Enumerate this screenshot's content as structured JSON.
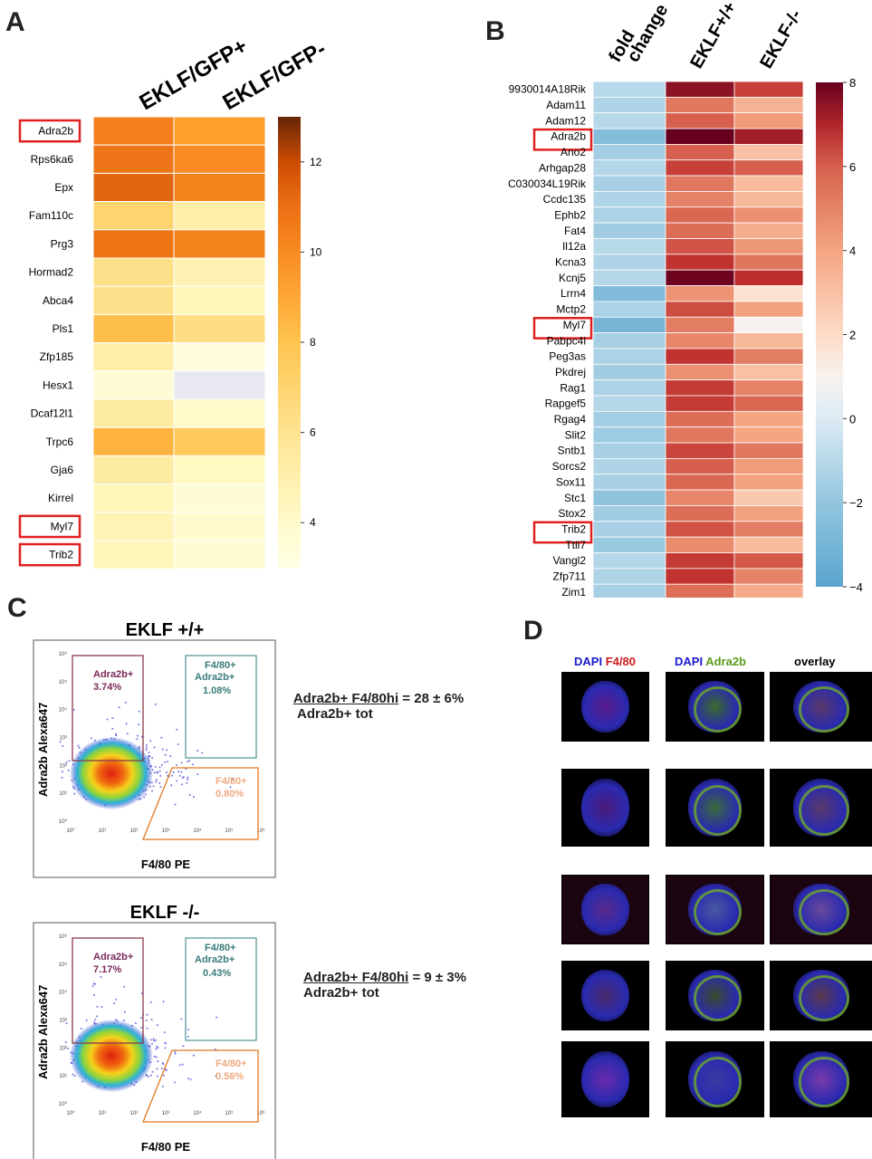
{
  "panels": {
    "a": "A",
    "b": "B",
    "c": "C",
    "d": "D"
  },
  "chart_data": [
    {
      "id": "A",
      "type": "heatmap",
      "columns": [
        "EKLF/GFP+",
        "EKLF/GFP-"
      ],
      "rows": [
        "Adra2b",
        "Rps6ka6",
        "Epx",
        "Fam110c",
        "Prg3",
        "Hormad2",
        "Abca4",
        "Pls1",
        "Zfp185",
        "Hesx1",
        "Dcaf12l1",
        "Trpc6",
        "Gja6",
        "Kirrel",
        "Myl7",
        "Trib2"
      ],
      "values": [
        [
          10.4,
          9.3
        ],
        [
          10.8,
          10.0
        ],
        [
          11.3,
          10.3
        ],
        [
          7.0,
          5.2
        ],
        [
          10.9,
          10.3
        ],
        [
          6.2,
          4.8
        ],
        [
          6.2,
          4.6
        ],
        [
          8.2,
          6.4
        ],
        [
          5.2,
          3.3
        ],
        [
          3.6,
          null
        ],
        [
          5.4,
          4.0
        ],
        [
          8.6,
          7.6
        ],
        [
          5.4,
          4.3
        ],
        [
          4.6,
          3.6
        ],
        [
          4.7,
          3.8
        ],
        [
          4.6,
          3.7
        ]
      ],
      "highlighted": [
        "Adra2b",
        "Myl7",
        "Trib2"
      ],
      "colorbar_ticks": [
        "12",
        "10",
        "8",
        "6",
        "4"
      ],
      "vmin": 3,
      "vmax": 13
    },
    {
      "id": "B",
      "type": "heatmap",
      "columns": [
        "fold change",
        "EKLF+/+",
        "EKLF-/-"
      ],
      "rows": [
        "9930014A18Rik",
        "Adam11",
        "Adam12",
        "Adra2b",
        "Ano2",
        "Arhgap28",
        "C030034L19Rik",
        "Ccdc135",
        "Ephb2",
        "Fat4",
        "Il12a",
        "Kcna3",
        "Kcnj5",
        "Lrrn4",
        "Mctp2",
        "Myl7",
        "Pabpc4l",
        "Peg3as",
        "Pkdrej",
        "Rag1",
        "Rapgef5",
        "Rgag4",
        "Slit2",
        "Sntb1",
        "Sorcs2",
        "Sox11",
        "Stc1",
        "Stox2",
        "Trib2",
        "Ttll7",
        "Vangl2",
        "Zfp711",
        "Zim1"
      ],
      "values": [
        [
          -1.0,
          7.5,
          6.5
        ],
        [
          -1.2,
          5.3,
          3.5
        ],
        [
          -1.0,
          6.0,
          4.3
        ],
        [
          -2.5,
          8.0,
          7.2
        ],
        [
          -1.5,
          6.0,
          3.0
        ],
        [
          -1.1,
          6.5,
          6.0
        ],
        [
          -1.4,
          5.3,
          3.2
        ],
        [
          -1.2,
          5.0,
          3.3
        ],
        [
          -1.3,
          5.8,
          4.6
        ],
        [
          -1.6,
          5.6,
          3.7
        ],
        [
          -1.0,
          6.2,
          4.4
        ],
        [
          -1.2,
          6.7,
          5.4
        ],
        [
          -1.1,
          7.9,
          6.8
        ],
        [
          -2.6,
          4.5,
          1.7
        ],
        [
          -1.3,
          6.3,
          4.1
        ],
        [
          -3.0,
          5.2,
          1.0
        ],
        [
          -1.4,
          4.9,
          3.3
        ],
        [
          -1.3,
          6.7,
          5.2
        ],
        [
          -1.6,
          4.6,
          3.0
        ],
        [
          -1.3,
          6.6,
          5.0
        ],
        [
          -1.1,
          6.6,
          5.8
        ],
        [
          -1.5,
          5.6,
          4.0
        ],
        [
          -1.7,
          5.3,
          4.0
        ],
        [
          -1.4,
          6.4,
          5.3
        ],
        [
          -1.2,
          6.0,
          4.3
        ],
        [
          -1.4,
          5.8,
          4.1
        ],
        [
          -2.1,
          4.9,
          2.7
        ],
        [
          -1.6,
          5.6,
          4.1
        ],
        [
          -1.4,
          6.2,
          5.2
        ],
        [
          -1.8,
          4.7,
          3.2
        ],
        [
          -1.1,
          6.6,
          6.1
        ],
        [
          -1.2,
          6.7,
          5.0
        ],
        [
          -1.4,
          5.6,
          3.8
        ]
      ],
      "highlighted": [
        "Adra2b",
        "Myl7",
        "Trib2"
      ],
      "colorbar_ticks": [
        "8",
        "6",
        "4",
        "2",
        "0",
        "−2",
        "−4"
      ],
      "vmin": -4,
      "vmax": 8
    },
    {
      "id": "C",
      "type": "scatter",
      "plots": [
        {
          "title": "EKLF +/+",
          "xlabel": "F4/80 PE",
          "ylabel": "Adra2b  Alexa647",
          "gates": {
            "adra2b": {
              "label": "Adra2b+",
              "pct": "3.74%"
            },
            "double": {
              "label1": "F4/80+",
              "label2": "Adra2b+",
              "pct": "1.08%"
            },
            "f480": {
              "label": "F4/80+",
              "pct": "0.80%"
            }
          },
          "formula": {
            "numerator": "Adra2b+ F4/80hi",
            "denominator": "Adra2b+ tot",
            "result": "= 28 ± 6%"
          }
        },
        {
          "title": "EKLF -/-",
          "xlabel": "F4/80 PE",
          "ylabel": "Adra2b  Alexa647",
          "gates": {
            "adra2b": {
              "label": "Adra2b+",
              "pct": "7.17%"
            },
            "double": {
              "label1": "F4/80+",
              "label2": "Adra2b+",
              "pct": "0.43%"
            },
            "f480": {
              "label": "F4/80+",
              "pct": "0.56%"
            }
          },
          "formula": {
            "numerator": "Adra2b+ F4/80hi",
            "denominator": "Adra2b+ tot",
            "result": "= 9 ± 3%"
          }
        }
      ]
    }
  ],
  "panel_d": {
    "header_dapi": "DAPI",
    "header_f480": "F4/80",
    "header_adra2b": "Adra2b",
    "header_overlay": "overlay"
  },
  "colors": {
    "highlight": "#e02020",
    "dapi": "#1a1acc",
    "f480": "#cc1a1a",
    "adra2b": "#5a9a1a"
  }
}
